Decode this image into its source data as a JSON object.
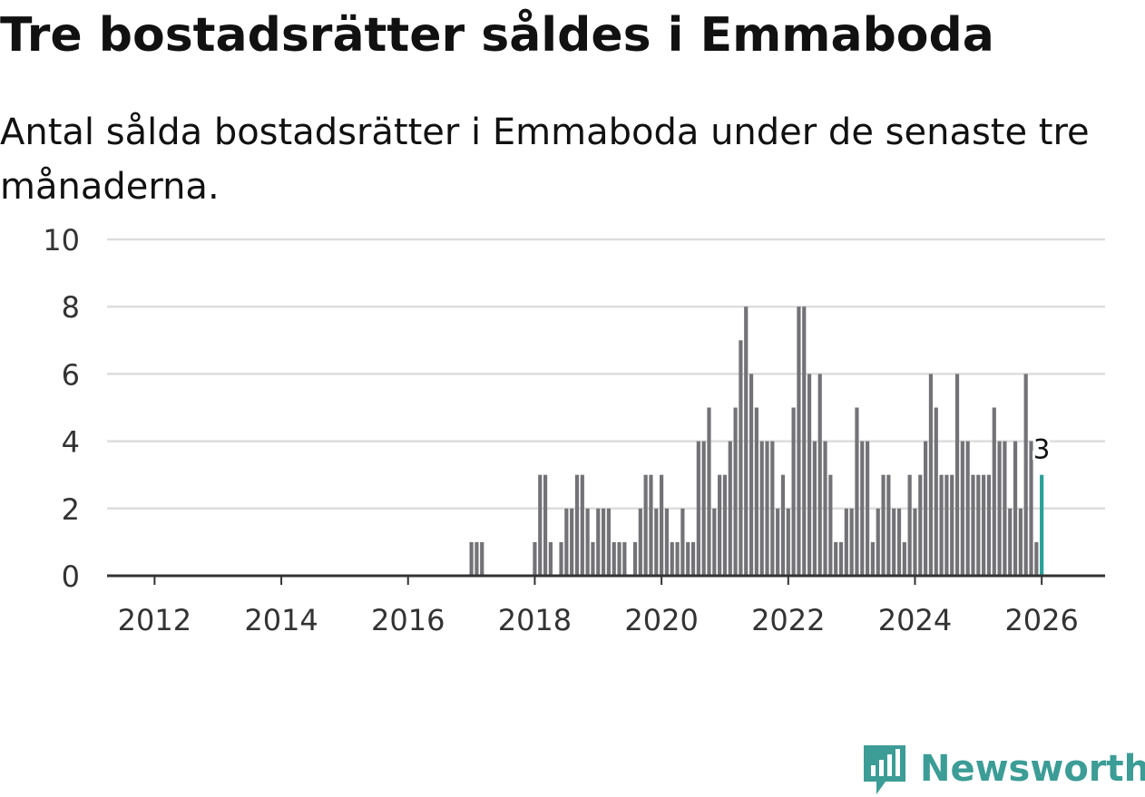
{
  "title": "Tre bostadsrätter såldes i Emmaboda",
  "subtitle": "Antal sålda bostadsrätter i Emmaboda under de senaste tre månaderna.",
  "brand": {
    "name": "Newsworthy",
    "color": "#3c9c96",
    "icon": "newsworthy-logo-icon"
  },
  "colors": {
    "bar": "#737277",
    "highlight": "#2aa198",
    "grid": "#dddddd",
    "axis": "#333333"
  },
  "chart_data": {
    "type": "bar",
    "title": "Tre bostadsrätter såldes i Emmaboda",
    "subtitle": "Antal sålda bostadsrätter i Emmaboda under de senaste tre månaderna.",
    "xlabel": "",
    "ylabel": "",
    "ylim": [
      0,
      10
    ],
    "yticks": [
      0,
      2,
      4,
      6,
      8,
      10
    ],
    "xticks": [
      2012,
      2014,
      2016,
      2018,
      2020,
      2022,
      2024,
      2026
    ],
    "xlim": [
      2011.25,
      2027.0
    ],
    "grid": true,
    "start_year": 2017,
    "start_month": 1,
    "values": [
      1,
      1,
      1,
      0,
      0,
      0,
      0,
      0,
      0,
      0,
      0,
      0,
      1,
      3,
      3,
      1,
      0,
      1,
      2,
      2,
      3,
      3,
      2,
      1,
      2,
      2,
      2,
      1,
      1,
      1,
      0,
      1,
      2,
      3,
      3,
      2,
      3,
      2,
      1,
      1,
      2,
      1,
      1,
      4,
      4,
      5,
      2,
      3,
      3,
      4,
      5,
      7,
      8,
      6,
      5,
      4,
      4,
      4,
      2,
      3,
      2,
      5,
      8,
      8,
      6,
      4,
      6,
      4,
      3,
      1,
      1,
      2,
      2,
      5,
      4,
      4,
      1,
      2,
      3,
      3,
      2,
      2,
      1,
      3,
      2,
      3,
      4,
      6,
      5,
      3,
      3,
      3,
      6,
      4,
      4,
      3,
      3,
      3,
      3,
      5,
      4,
      4,
      2,
      4,
      2,
      6,
      4,
      1,
      3
    ],
    "highlight_label": "3"
  }
}
